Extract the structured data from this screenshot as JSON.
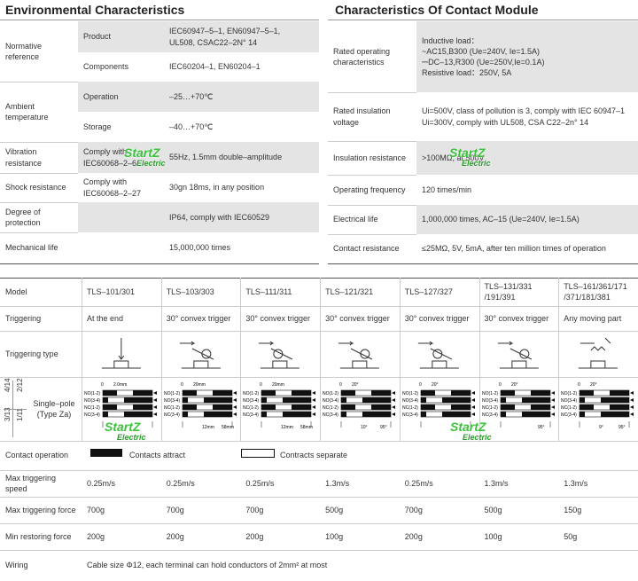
{
  "watermark": [
    "StartZ",
    "Electric"
  ],
  "environmental": {
    "title": "Environmental Characteristics",
    "groups": [
      {
        "label": "Normative reference",
        "rows": [
          {
            "sub": "Product",
            "value": [
              "IEC60947–5–1, EN60947–5–1,",
              "UL508, CSAC22–2N° 14"
            ]
          },
          {
            "sub": "Components",
            "value": [
              "IEC60204–1, EN60204–1"
            ]
          }
        ]
      },
      {
        "label": "Ambient temperature",
        "rows": [
          {
            "sub": "Operation",
            "value": [
              "–25…+70℃"
            ]
          },
          {
            "sub": "Storage",
            "value": [
              "–40…+70℃"
            ]
          }
        ]
      },
      {
        "label": "Vibration resistance",
        "rows": [
          {
            "sub": "Comply with IEC60068–2–6",
            "value": [
              "55Hz, 1.5mm double–amplitude"
            ]
          }
        ]
      },
      {
        "label": "Shock resistance",
        "rows": [
          {
            "sub": "Comply with IEC60068–2–27",
            "value": [
              "30gn 18ms, in any position"
            ]
          }
        ]
      },
      {
        "label": "Degree of protection",
        "rows": [
          {
            "value": [
              "IP64, comply with IEC60529"
            ]
          }
        ]
      },
      {
        "label": "Mechanical life",
        "rows": [
          {
            "value": [
              "15,000,000 times"
            ]
          }
        ]
      }
    ]
  },
  "contact_module": {
    "title": "Characteristics Of Contact Module",
    "rows": [
      {
        "label": "Rated operating characteristics",
        "value": [
          "Inductive load：",
          "~AC15,B300 (Ue=240V, Ie=1.5A)",
          "⎓DC–13,R300 (Ue=250V,Ie=0.1A)",
          "Resistive load：250V, 5A"
        ]
      },
      {
        "label": "Rated insulation voltage",
        "value": [
          "Ui=500V, class of pollution is 3, comply with IEC 60947–1",
          "Ui=300V, comply with UL508, CSA C22–2n° 14"
        ]
      },
      {
        "label": "Insulation resistance",
        "value": [
          ">100MΩ, at 500V"
        ]
      },
      {
        "label": "Operating frequency",
        "value": [
          "120 times/min"
        ]
      },
      {
        "label": "Electrical life",
        "value": [
          "1,000,000 times, AC–15 (Ue=240V, Ie=1.5A)"
        ]
      },
      {
        "label": "Contact resistance",
        "value": [
          "≤25MΩ, 5V, 5mA, after ten million times of operation"
        ]
      }
    ]
  },
  "specs": {
    "model": {
      "label": "Model",
      "values": [
        [
          "TLS–101/301"
        ],
        [
          "TLS–103/303"
        ],
        [
          "TLS–111/311"
        ],
        [
          "TLS–121/321"
        ],
        [
          "TLS–127/327"
        ],
        [
          "TLS–131/331",
          "/191/391"
        ],
        [
          "TLS–161/361/171",
          "/371/181/381"
        ]
      ]
    },
    "triggering": {
      "label": "Triggering",
      "values": [
        "At the end",
        "30° convex trigger",
        "30° convex trigger",
        "30° convex trigger",
        "30° convex trigger",
        "30° convex trigger",
        "Any moving part"
      ]
    },
    "triggering_type": {
      "label": "Triggering type"
    },
    "diagram": {
      "side_labels": [
        "4/14",
        "2/12",
        "3/13",
        "1/11"
      ],
      "label": [
        "Single–pole",
        "(Type Za)"
      ],
      "rows": [
        "NO(1-2)",
        "NO(3-4)",
        "NC(1-2)",
        "NC(3-4)"
      ],
      "charts": [
        {
          "top": [
            "0",
            "2.0mm"
          ]
        },
        {
          "top": [
            "0",
            "20mm"
          ],
          "bottom": [
            "12mm",
            "58mm"
          ]
        },
        {
          "top": [
            "0",
            "20mm"
          ],
          "bottom": [
            "12mm",
            "58mm"
          ]
        },
        {
          "top": [
            "0",
            "20°"
          ],
          "bottom": [
            "10°",
            "95°"
          ]
        },
        {
          "top": [
            "0",
            "20°"
          ]
        },
        {
          "top": [
            "0",
            "20°"
          ],
          "bottom": [
            "95°"
          ]
        },
        {
          "top": [
            "0",
            "20°"
          ],
          "bottom": [
            "9°",
            "95°"
          ]
        }
      ]
    },
    "contact_operation": {
      "label": "Contact operation",
      "attract": "Contacts attract",
      "separate": "Contracts separate"
    },
    "max_speed": {
      "label": "Max triggering speed",
      "values": [
        "0.25m/s",
        "0.25m/s",
        "0.25m/s",
        "1.3m/s",
        "0.25m/s",
        "1.3m/s",
        "1.3m/s"
      ]
    },
    "max_force": {
      "label": "Max triggering force",
      "values": [
        "700g",
        "700g",
        "700g",
        "500g",
        "700g",
        "500g",
        "150g"
      ]
    },
    "min_restoring": {
      "label": "Min restoring force",
      "values": [
        "200g",
        "200g",
        "200g",
        "100g",
        "200g",
        "100g",
        "50g"
      ]
    },
    "wiring": {
      "label": "Wiring",
      "value": "Cable size Φ12, each terminal can hold conductors of 2mm² at most"
    }
  }
}
